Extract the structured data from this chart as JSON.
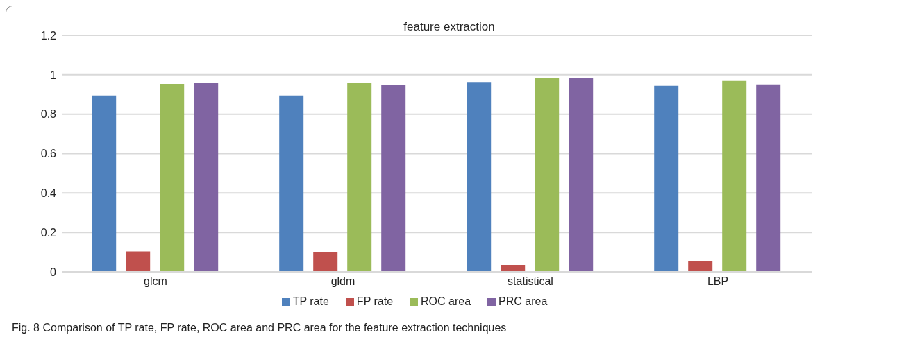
{
  "chart_data": {
    "type": "bar",
    "title": "feature extraction",
    "categories": [
      "glcm",
      "gldm",
      "statistical",
      "LBP"
    ],
    "series": [
      {
        "name": "TP rate",
        "color": "#4f81bd",
        "values": [
          0.895,
          0.895,
          0.963,
          0.944
        ]
      },
      {
        "name": "FP rate",
        "color": "#c0504d",
        "values": [
          0.104,
          0.101,
          0.035,
          0.054
        ]
      },
      {
        "name": "ROC area",
        "color": "#9bbb59",
        "values": [
          0.954,
          0.958,
          0.983,
          0.969
        ]
      },
      {
        "name": "PRC area",
        "color": "#8064a2",
        "values": [
          0.958,
          0.95,
          0.985,
          0.951
        ]
      }
    ],
    "ylim": [
      0,
      1.2
    ],
    "yticks": [
      0,
      0.2,
      0.4,
      0.6,
      0.8,
      1,
      1.2
    ],
    "grid": "y",
    "legend": "bottom",
    "annotations": [
      "Fig. 8  Comparison of TP rate, FP rate, ROC area and PRC area for the feature extraction techniques"
    ]
  }
}
